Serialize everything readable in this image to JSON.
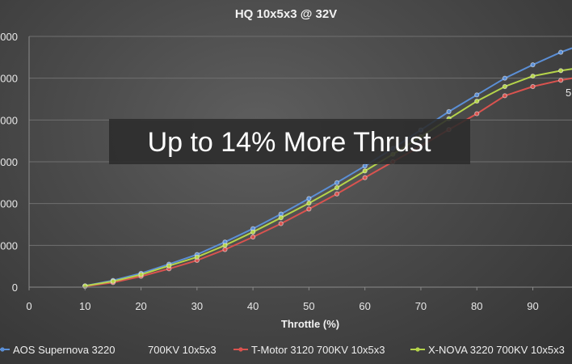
{
  "chart_data": {
    "type": "line",
    "title": "HQ 10x5x3  @ 32V",
    "xlabel": "Throttle (%)",
    "ylabel": "",
    "x_ticks": [
      "0",
      "10",
      "20",
      "30",
      "40",
      "50",
      "60",
      "70",
      "80",
      "90"
    ],
    "y_ticks": [
      "0",
      "000",
      "000",
      "000",
      "000",
      "000",
      "000"
    ],
    "xlim": [
      0,
      97
    ],
    "ylim": [
      0,
      6
    ],
    "grid": "horizontal",
    "legend_position": "bottom",
    "annotation": "Up to 14% More Thrust",
    "edge_label": "5",
    "x": [
      10,
      15,
      20,
      25,
      30,
      35,
      40,
      45,
      50,
      55,
      60,
      65,
      70,
      75,
      80,
      85,
      90,
      95,
      97
    ],
    "series": [
      {
        "name": "AOS Supernova 3220",
        "name_suffix": "700KV 10x5x3",
        "color": "#5b8fd6",
        "values": [
          0.03,
          0.16,
          0.33,
          0.55,
          0.78,
          1.08,
          1.4,
          1.75,
          2.12,
          2.5,
          2.9,
          3.32,
          3.76,
          4.2,
          4.6,
          5.0,
          5.32,
          5.62,
          5.72
        ]
      },
      {
        "name": "T-Motor 3120",
        "name_suffix": "700KV 10x5x3",
        "color": "#d9534f",
        "values": [
          0.02,
          0.11,
          0.26,
          0.44,
          0.64,
          0.9,
          1.2,
          1.52,
          1.87,
          2.23,
          2.62,
          3.0,
          3.38,
          3.77,
          4.15,
          4.58,
          4.8,
          4.95,
          5.0
        ]
      },
      {
        "name": "X-NOVA 3220",
        "name_suffix": "700KV 10x5x3",
        "color": "#b5d44a",
        "values": [
          0.03,
          0.14,
          0.3,
          0.51,
          0.72,
          1.0,
          1.32,
          1.66,
          2.01,
          2.38,
          2.78,
          3.18,
          3.6,
          4.03,
          4.45,
          4.8,
          5.05,
          5.18,
          5.22
        ]
      }
    ]
  }
}
